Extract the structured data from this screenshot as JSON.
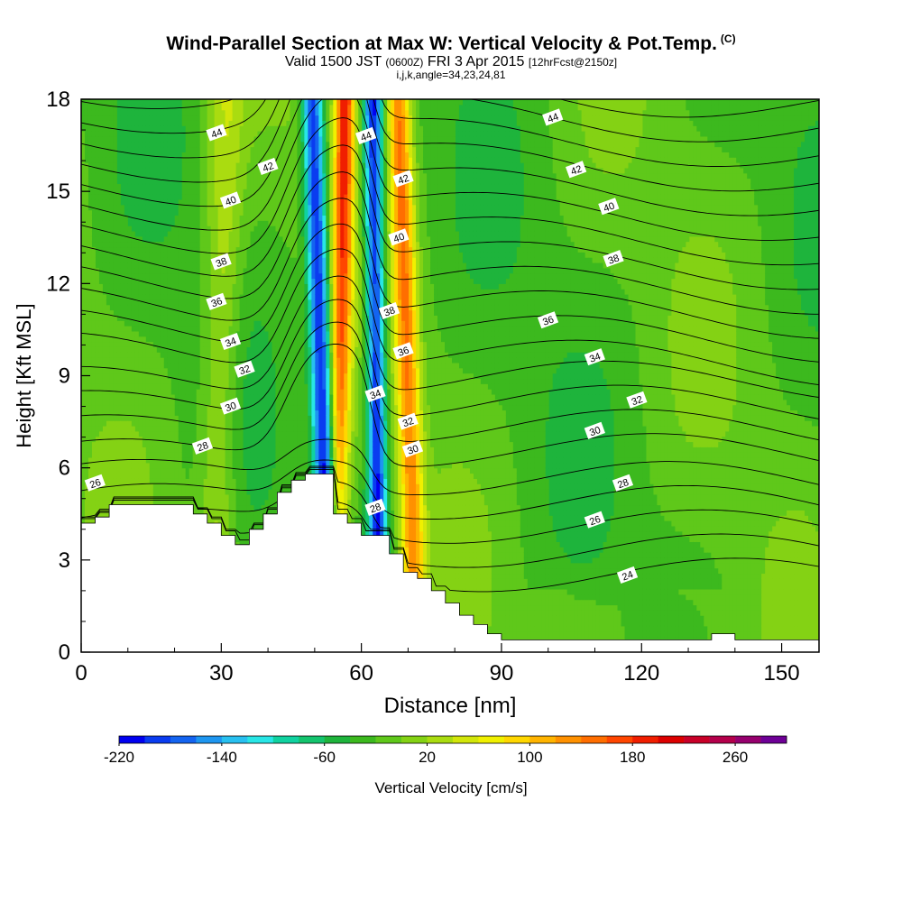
{
  "title": "Wind-Parallel Section at Max W: Vertical Velocity & Pot.Temp.",
  "copyright_mark": "(C)",
  "subtitle": {
    "main": "Valid 1500 JST",
    "utc": "(0600Z)",
    "date": "FRI 3 Apr 2015",
    "run": "[12hrFcst@2150z]"
  },
  "indices_line": "i,j,k,angle=34,23,24,81",
  "chart_data": {
    "type": "heatmap",
    "xlabel": "Distance [nm]",
    "ylabel": "Height [Kft MSL]",
    "xlim": [
      0,
      158
    ],
    "ylim": [
      0,
      18
    ],
    "x_ticks": [
      "0",
      "30",
      "60",
      "90",
      "120",
      "150"
    ],
    "y_ticks": [
      "0",
      "3",
      "6",
      "9",
      "12",
      "15",
      "18"
    ],
    "fill_variable": "Vertical Velocity [cm/s]",
    "colorbar": {
      "label": "Vertical Velocity [cm/s]",
      "levels": [
        -220,
        -200,
        -180,
        -160,
        -140,
        -120,
        -100,
        -80,
        -60,
        -40,
        -20,
        0,
        20,
        40,
        60,
        80,
        100,
        120,
        140,
        160,
        180,
        200,
        220,
        240,
        260,
        280,
        300
      ],
      "tick_labels": [
        "-220",
        "-140",
        "-60",
        "20",
        "100",
        "180",
        "260"
      ],
      "colors": [
        "#0000f0",
        "#0a3cf0",
        "#1464f0",
        "#1e96f0",
        "#28c0f0",
        "#28e6e6",
        "#10d2a0",
        "#14c46e",
        "#1eb43c",
        "#3cb91e",
        "#5fc81a",
        "#84d214",
        "#aadc10",
        "#d2e60a",
        "#f0f000",
        "#ffd700",
        "#ffb400",
        "#ff9100",
        "#ff6e00",
        "#ff4600",
        "#f01e00",
        "#dc0000",
        "#c80028",
        "#b4004b",
        "#96006e",
        "#6e0096"
      ]
    },
    "contour_variable": "Potential temperature",
    "updraft_bands": [
      {
        "x_center": 29,
        "w_max": 40
      },
      {
        "x_center": 55,
        "w_max": 180
      },
      {
        "x_center": 71,
        "w_max": 140
      }
    ],
    "downdraft_bands": [
      {
        "x_center": 51,
        "w_min": -220
      },
      {
        "x_center": 63,
        "w_min": -180
      }
    ],
    "terrain_profile": {
      "x": [
        0,
        3,
        6,
        9,
        12,
        15,
        18,
        21,
        24,
        27,
        30,
        33,
        36,
        39,
        42,
        45,
        48,
        51,
        54,
        57,
        60,
        63,
        66,
        69,
        72,
        75,
        78,
        81,
        84,
        87,
        90,
        95,
        100,
        105,
        110,
        115,
        120,
        125,
        130,
        135,
        140,
        145,
        150,
        155,
        158
      ],
      "y": [
        4.2,
        4.4,
        4.8,
        4.8,
        4.8,
        4.8,
        4.8,
        4.8,
        4.5,
        4.2,
        3.8,
        3.5,
        4.0,
        4.5,
        5.2,
        5.6,
        5.8,
        5.8,
        4.5,
        4.2,
        3.8,
        3.8,
        3.2,
        2.6,
        2.4,
        2.0,
        1.6,
        1.2,
        0.9,
        0.6,
        0.4,
        0.4,
        0.4,
        0.4,
        0.4,
        0.4,
        0.4,
        0.4,
        0.4,
        0.6,
        0.4,
        0.4,
        0.4,
        0.4,
        0.4
      ]
    },
    "theta_contour_labels": [
      {
        "value": "26",
        "x": 3,
        "y": 5.5
      },
      {
        "value": "28",
        "x": 26,
        "y": 6.7
      },
      {
        "value": "30",
        "x": 32,
        "y": 8.0
      },
      {
        "value": "32",
        "x": 35,
        "y": 9.2
      },
      {
        "value": "34",
        "x": 32,
        "y": 10.1
      },
      {
        "value": "36",
        "x": 29,
        "y": 11.4
      },
      {
        "value": "38",
        "x": 30,
        "y": 12.7
      },
      {
        "value": "40",
        "x": 32,
        "y": 14.7
      },
      {
        "value": "42",
        "x": 40,
        "y": 15.8
      },
      {
        "value": "44",
        "x": 29,
        "y": 16.9
      },
      {
        "value": "44",
        "x": 61,
        "y": 16.8
      },
      {
        "value": "42",
        "x": 69,
        "y": 15.4
      },
      {
        "value": "40",
        "x": 68,
        "y": 13.5
      },
      {
        "value": "38",
        "x": 66,
        "y": 11.1
      },
      {
        "value": "36",
        "x": 69,
        "y": 9.8
      },
      {
        "value": "34",
        "x": 63,
        "y": 8.4
      },
      {
        "value": "32",
        "x": 70,
        "y": 7.5
      },
      {
        "value": "30",
        "x": 71,
        "y": 6.6
      },
      {
        "value": "28",
        "x": 63,
        "y": 4.7
      },
      {
        "value": "44",
        "x": 101,
        "y": 17.4
      },
      {
        "value": "42",
        "x": 106,
        "y": 15.7
      },
      {
        "value": "40",
        "x": 113,
        "y": 14.5
      },
      {
        "value": "38",
        "x": 114,
        "y": 12.8
      },
      {
        "value": "36",
        "x": 100,
        "y": 10.8
      },
      {
        "value": "34",
        "x": 110,
        "y": 9.6
      },
      {
        "value": "32",
        "x": 119,
        "y": 8.2
      },
      {
        "value": "30",
        "x": 110,
        "y": 7.2
      },
      {
        "value": "28",
        "x": 116,
        "y": 5.5
      },
      {
        "value": "26",
        "x": 110,
        "y": 4.3
      },
      {
        "value": "24",
        "x": 117,
        "y": 2.5
      }
    ]
  }
}
